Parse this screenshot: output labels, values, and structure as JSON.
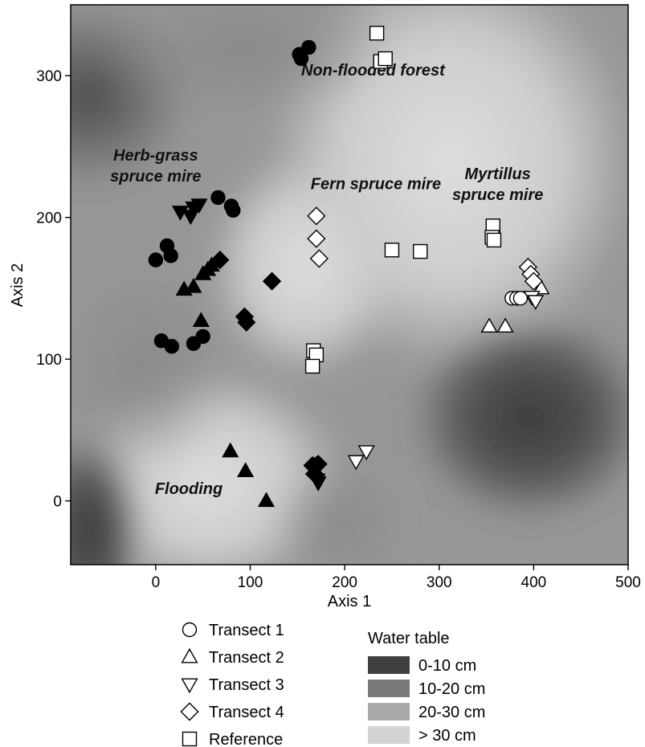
{
  "chart_data": {
    "type": "scatter",
    "xlabel": "Axis 1",
    "ylabel": "Axis 2",
    "xlim": [
      -90,
      500
    ],
    "ylim": [
      -45,
      350
    ],
    "xticks": [
      "0",
      "100",
      "200",
      "300",
      "400",
      "500"
    ],
    "yticks": [
      "0",
      "100",
      "200",
      "300"
    ],
    "annotations": [
      {
        "lines": [
          "Non-flooded forest"
        ],
        "x": 230,
        "y": 300
      },
      {
        "lines": [
          "Herb-grass",
          "spruce mire"
        ],
        "x": 0,
        "y": 240
      },
      {
        "lines": [
          "Fern spruce mire"
        ],
        "x": 233,
        "y": 220
      },
      {
        "lines": [
          "Myrtillus",
          "spruce mire"
        ],
        "x": 362,
        "y": 227
      },
      {
        "lines": [
          "Flooding"
        ],
        "x": 35,
        "y": 5
      }
    ],
    "series": [
      {
        "name": "Transect 1",
        "marker": "circle",
        "filled": [
          [
            152,
            315
          ],
          [
            154,
            312
          ],
          [
            162,
            320
          ],
          [
            66,
            214
          ],
          [
            80,
            208
          ],
          [
            82,
            205
          ],
          [
            0,
            170
          ],
          [
            12,
            180
          ],
          [
            16,
            173
          ],
          [
            6,
            113
          ],
          [
            17,
            109
          ],
          [
            40,
            111
          ],
          [
            50,
            116
          ]
        ],
        "open": [
          [
            377,
            143
          ],
          [
            382,
            143
          ],
          [
            386,
            143
          ]
        ]
      },
      {
        "name": "Transect 2",
        "marker": "triangle-up",
        "filled": [
          [
            30,
            149
          ],
          [
            40,
            151
          ],
          [
            50,
            160
          ],
          [
            55,
            163
          ],
          [
            59,
            166
          ],
          [
            48,
            127
          ],
          [
            79,
            35
          ],
          [
            95,
            21
          ],
          [
            117,
            0
          ]
        ],
        "open": [
          [
            353,
            123
          ],
          [
            370,
            123
          ],
          [
            408,
            150
          ]
        ]
      },
      {
        "name": "Transect 3",
        "marker": "triangle-down",
        "filled": [
          [
            26,
            204
          ],
          [
            37,
            201
          ],
          [
            40,
            207
          ],
          [
            46,
            209
          ],
          [
            171,
            15
          ],
          [
            172,
            13
          ]
        ],
        "open": [
          [
            212,
            28
          ],
          [
            223,
            35
          ],
          [
            398,
            144
          ],
          [
            402,
            141
          ]
        ]
      },
      {
        "name": "Transect 4",
        "marker": "diamond",
        "filled": [
          [
            68,
            170
          ],
          [
            94,
            130
          ],
          [
            96,
            126
          ],
          [
            123,
            155
          ],
          [
            166,
            25
          ],
          [
            170,
            25
          ],
          [
            172,
            26
          ],
          [
            168,
            19
          ]
        ],
        "open": [
          [
            170,
            201
          ],
          [
            170,
            185
          ],
          [
            173,
            171
          ],
          [
            394,
            165
          ],
          [
            397,
            160
          ],
          [
            400,
            155
          ]
        ]
      },
      {
        "name": "Reference",
        "marker": "square",
        "filled": [],
        "open": [
          [
            234,
            330
          ],
          [
            238,
            310
          ],
          [
            243,
            312
          ],
          [
            167,
            106
          ],
          [
            170,
            103
          ],
          [
            166,
            95
          ],
          [
            250,
            177
          ],
          [
            280,
            176
          ],
          [
            357,
            194
          ],
          [
            356,
            186
          ],
          [
            358,
            184
          ]
        ]
      }
    ],
    "water_table_legend": {
      "title": "Water table",
      "classes": [
        {
          "label": "0-10 cm",
          "color": "#3f3f3f"
        },
        {
          "label": "10-20 cm",
          "color": "#797979"
        },
        {
          "label": "20-30 cm",
          "color": "#a9a9a9"
        },
        {
          "label": "> 30 cm",
          "color": "#d3d3d3"
        }
      ]
    }
  }
}
